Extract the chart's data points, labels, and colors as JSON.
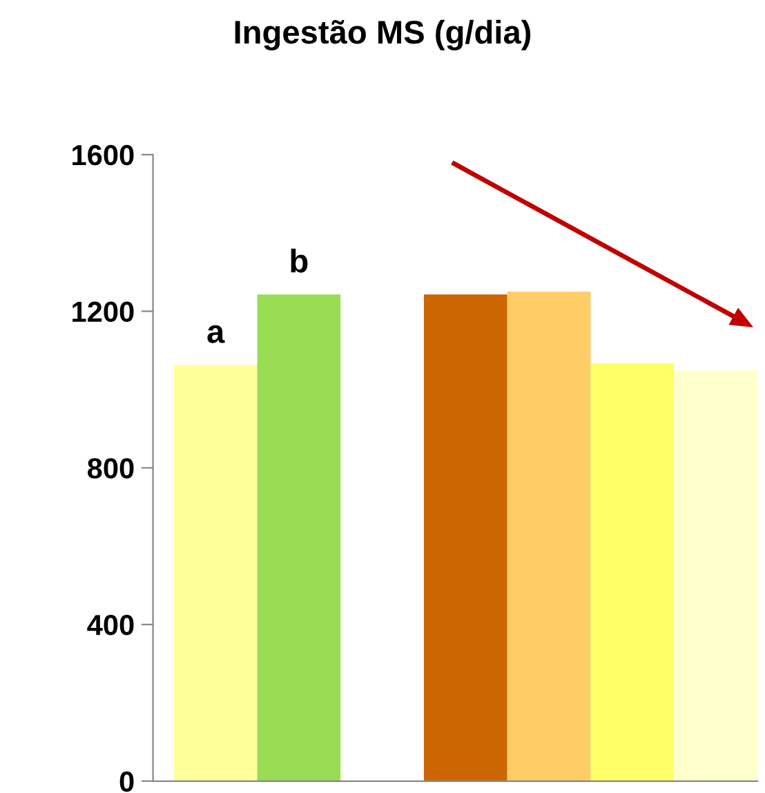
{
  "chart_data": {
    "type": "bar",
    "title": "Ingestão MS (g/dia)",
    "categories": [
      null,
      null,
      null,
      null,
      null,
      null,
      null
    ],
    "values": [
      1063,
      1243,
      null,
      1243,
      1250,
      1067,
      1049
    ],
    "colors": [
      "#ffff99",
      "#99dd55",
      "#ffffff",
      "#cc6600",
      "#ffcc66",
      "#ffff66",
      "#ffffcc"
    ],
    "value_labels": [
      "a",
      "b",
      null,
      null,
      null,
      null,
      null
    ],
    "ylim": [
      0,
      1600
    ],
    "yticks": [
      0,
      400,
      800,
      1200,
      1600
    ],
    "grid": false
  }
}
